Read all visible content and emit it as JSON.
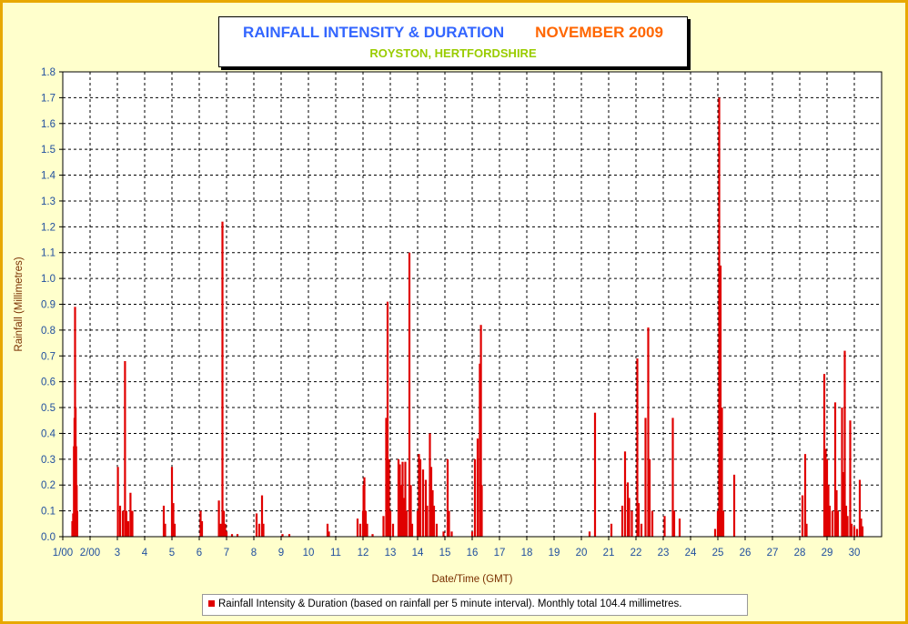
{
  "chart_data": {
    "type": "bar",
    "title": "RAINFALL INTENSITY & DURATION",
    "title_month": "NOVEMBER 2009",
    "subtitle": "ROYSTON, HERTFORDSHIRE",
    "xlabel": "Date/Time (GMT)",
    "ylabel": "Rainfall (Millimetres)",
    "ylim": [
      0,
      1.8
    ],
    "yticks": [
      "0.0",
      "0.1",
      "0.2",
      "0.3",
      "0.4",
      "0.5",
      "0.6",
      "0.7",
      "0.8",
      "0.9",
      "1.0",
      "1.1",
      "1.2",
      "1.3",
      "1.4",
      "1.5",
      "1.6",
      "1.7",
      "1.8"
    ],
    "xlim": [
      1,
      31
    ],
    "xticks": [
      "1/00",
      "2/00",
      "3",
      "4",
      "5",
      "6",
      "7",
      "8",
      "9",
      "10",
      "11",
      "12",
      "13",
      "14",
      "15",
      "16",
      "17",
      "18",
      "19",
      "20",
      "21",
      "22",
      "23",
      "24",
      "25",
      "26",
      "27",
      "28",
      "29",
      "30"
    ],
    "grid": true,
    "series_color": "#e00000",
    "legend": "Rainfall Intensity & Duration (based on rainfall per 5 minute interval). Monthly total 104.4 millimetres.",
    "legend_position": "bottom",
    "points": [
      [
        1.35,
        0.06
      ],
      [
        1.38,
        0.09
      ],
      [
        1.41,
        0.35
      ],
      [
        1.43,
        0.46
      ],
      [
        1.45,
        0.89
      ],
      [
        1.47,
        0.5
      ],
      [
        1.49,
        0.35
      ],
      [
        1.51,
        0.2
      ],
      [
        1.53,
        0.1
      ],
      [
        3.02,
        0.27
      ],
      [
        3.1,
        0.12
      ],
      [
        3.2,
        0.1
      ],
      [
        3.28,
        0.68
      ],
      [
        3.33,
        0.1
      ],
      [
        3.4,
        0.06
      ],
      [
        3.48,
        0.17
      ],
      [
        3.55,
        0.1
      ],
      [
        4.7,
        0.12
      ],
      [
        4.75,
        0.05
      ],
      [
        5.0,
        0.27
      ],
      [
        5.05,
        0.13
      ],
      [
        5.1,
        0.05
      ],
      [
        6.05,
        0.1
      ],
      [
        6.1,
        0.06
      ],
      [
        6.72,
        0.14
      ],
      [
        6.78,
        0.05
      ],
      [
        6.85,
        1.22
      ],
      [
        6.9,
        0.1
      ],
      [
        6.95,
        0.05
      ],
      [
        7.0,
        0.02
      ],
      [
        7.2,
        0.01
      ],
      [
        7.4,
        0.01
      ],
      [
        8.1,
        0.09
      ],
      [
        8.2,
        0.05
      ],
      [
        8.3,
        0.16
      ],
      [
        8.35,
        0.05
      ],
      [
        9.05,
        0.01
      ],
      [
        9.3,
        0.01
      ],
      [
        10.7,
        0.05
      ],
      [
        10.75,
        0.02
      ],
      [
        11.8,
        0.07
      ],
      [
        11.9,
        0.05
      ],
      [
        12.0,
        0.1
      ],
      [
        12.02,
        0.2
      ],
      [
        12.05,
        0.23
      ],
      [
        12.1,
        0.1
      ],
      [
        12.15,
        0.05
      ],
      [
        12.35,
        0.01
      ],
      [
        12.75,
        0.08
      ],
      [
        12.85,
        0.46
      ],
      [
        12.9,
        0.91
      ],
      [
        12.95,
        0.3
      ],
      [
        13.0,
        0.1
      ],
      [
        13.1,
        0.05
      ],
      [
        13.3,
        0.3
      ],
      [
        13.35,
        0.28
      ],
      [
        13.4,
        0.2
      ],
      [
        13.45,
        0.29
      ],
      [
        13.5,
        0.15
      ],
      [
        13.55,
        0.29
      ],
      [
        13.6,
        0.1
      ],
      [
        13.7,
        1.1
      ],
      [
        13.75,
        0.2
      ],
      [
        13.8,
        0.05
      ],
      [
        14.0,
        0.1
      ],
      [
        14.05,
        0.32
      ],
      [
        14.1,
        0.3
      ],
      [
        14.2,
        0.26
      ],
      [
        14.3,
        0.22
      ],
      [
        14.35,
        0.12
      ],
      [
        14.45,
        0.4
      ],
      [
        14.5,
        0.27
      ],
      [
        14.55,
        0.18
      ],
      [
        14.6,
        0.12
      ],
      [
        14.7,
        0.05
      ],
      [
        14.95,
        0.02
      ],
      [
        15.1,
        0.3
      ],
      [
        15.15,
        0.1
      ],
      [
        15.25,
        0.02
      ],
      [
        16.0,
        0.02
      ],
      [
        16.1,
        0.3
      ],
      [
        16.2,
        0.38
      ],
      [
        16.28,
        0.67
      ],
      [
        16.32,
        0.82
      ],
      [
        16.35,
        0.2
      ],
      [
        20.3,
        0.02
      ],
      [
        20.5,
        0.48
      ],
      [
        21.1,
        0.05
      ],
      [
        21.5,
        0.12
      ],
      [
        21.6,
        0.33
      ],
      [
        21.7,
        0.21
      ],
      [
        21.75,
        0.15
      ],
      [
        21.85,
        0.1
      ],
      [
        22.05,
        0.69
      ],
      [
        22.1,
        0.13
      ],
      [
        22.2,
        0.05
      ],
      [
        22.35,
        0.46
      ],
      [
        22.45,
        0.81
      ],
      [
        22.5,
        0.3
      ],
      [
        22.6,
        0.1
      ],
      [
        23.05,
        0.08
      ],
      [
        23.35,
        0.46
      ],
      [
        23.4,
        0.1
      ],
      [
        23.6,
        0.07
      ],
      [
        24.9,
        0.03
      ],
      [
        25.0,
        0.1
      ],
      [
        25.05,
        1.7
      ],
      [
        25.1,
        1.05
      ],
      [
        25.15,
        0.5
      ],
      [
        25.2,
        0.1
      ],
      [
        25.6,
        0.24
      ],
      [
        28.1,
        0.16
      ],
      [
        28.2,
        0.32
      ],
      [
        28.25,
        0.05
      ],
      [
        28.9,
        0.63
      ],
      [
        28.95,
        0.34
      ],
      [
        29.0,
        0.3
      ],
      [
        29.05,
        0.2
      ],
      [
        29.1,
        0.12
      ],
      [
        29.2,
        0.1
      ],
      [
        29.3,
        0.52
      ],
      [
        29.35,
        0.18
      ],
      [
        29.4,
        0.1
      ],
      [
        29.55,
        0.5
      ],
      [
        29.6,
        0.25
      ],
      [
        29.65,
        0.72
      ],
      [
        29.7,
        0.12
      ],
      [
        29.75,
        0.08
      ],
      [
        29.85,
        0.45
      ],
      [
        29.9,
        0.05
      ],
      [
        30.0,
        0.04
      ],
      [
        30.1,
        0.03
      ],
      [
        30.2,
        0.22
      ],
      [
        30.25,
        0.07
      ],
      [
        30.3,
        0.04
      ]
    ]
  }
}
